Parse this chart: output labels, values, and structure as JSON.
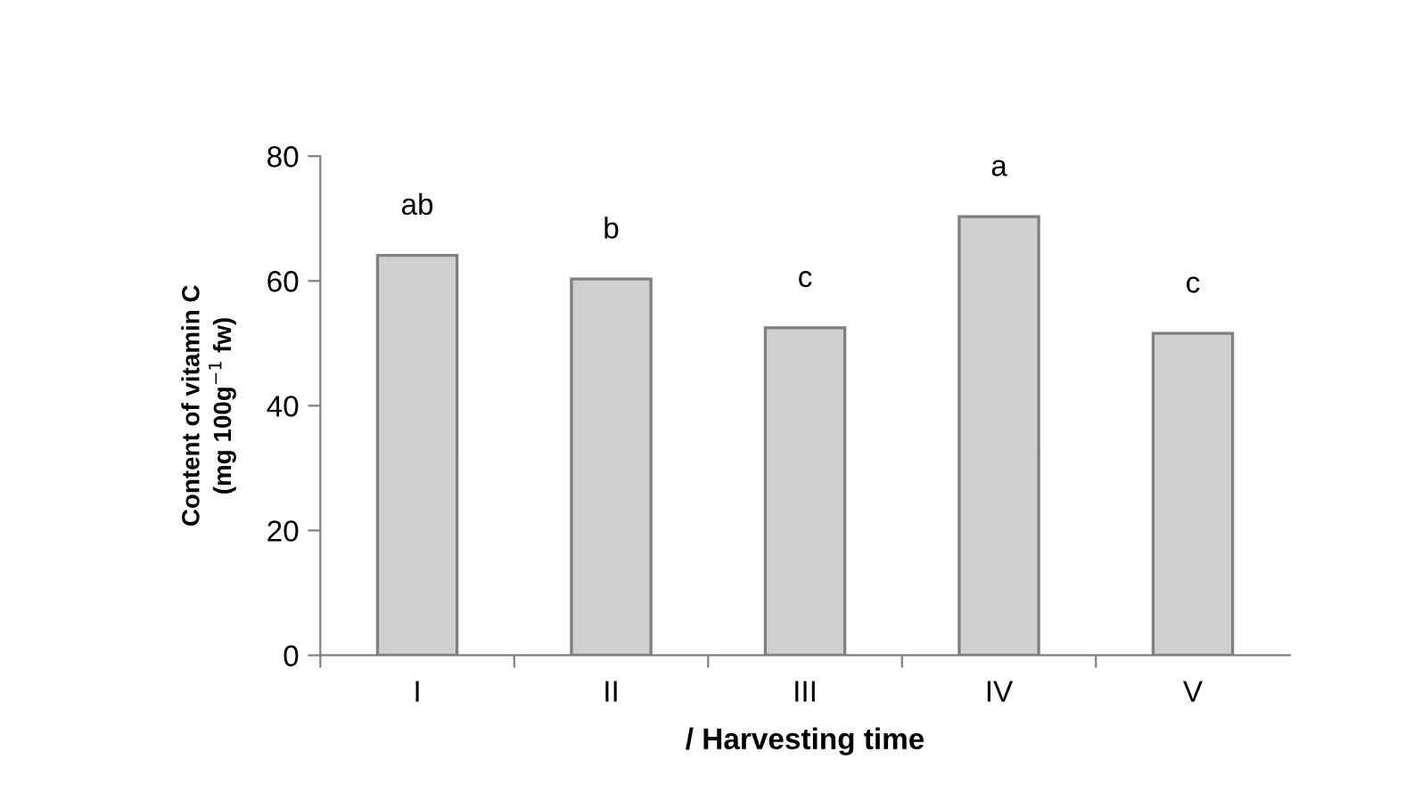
{
  "chart_data": {
    "type": "bar",
    "xlabel": "/ Harvesting time",
    "ylabel": "Content of vitamin C\n(mg 100g$^{−1}$ fw)",
    "categories": [
      "I",
      "II",
      "III",
      "IV",
      "V"
    ],
    "values": [
      64.1,
      60.3,
      52.5,
      70.3,
      51.6
    ],
    "color": "#d0d0d0",
    "ylim": [
      0,
      80
    ],
    "yticks": [
      0,
      20,
      40,
      60,
      80
    ],
    "grid": false,
    "annotations": [
      "ab",
      "b",
      "c",
      "a",
      "c"
    ]
  }
}
